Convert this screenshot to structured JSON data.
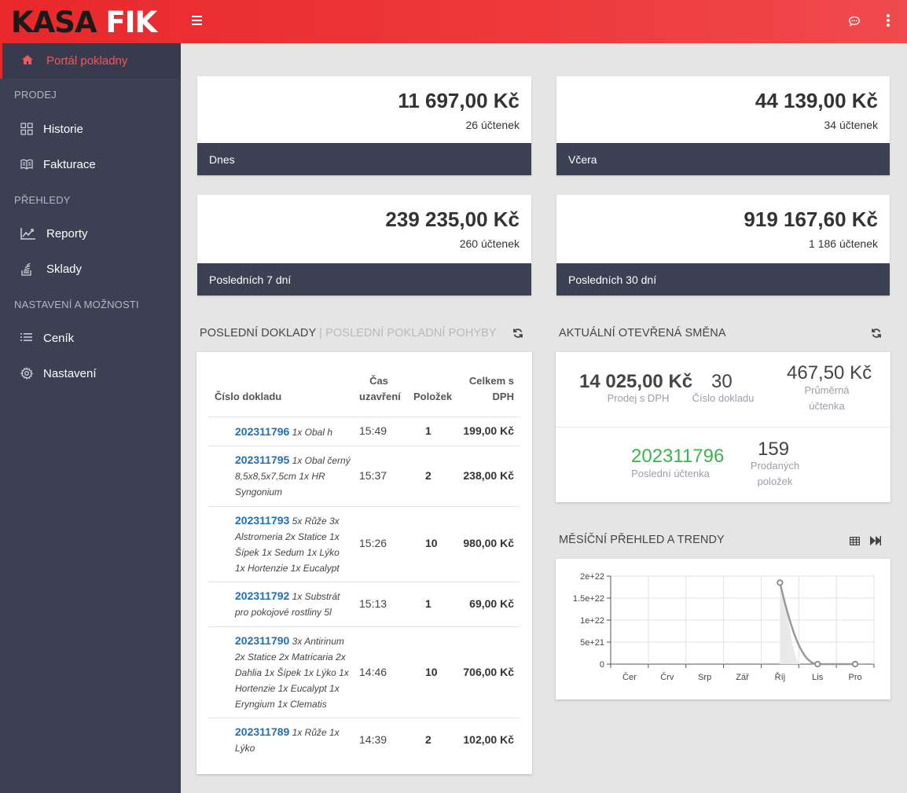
{
  "header": {
    "logo_part1": "KASA",
    "logo_part2": "FIK"
  },
  "sidebar": {
    "active": {
      "label": "Portál pokladny",
      "icon": "home-icon"
    },
    "sections": [
      {
        "title": "PRODEJ",
        "items": [
          {
            "label": "Historie",
            "icon": "grid-icon"
          },
          {
            "label": "Fakturace",
            "icon": "book-icon"
          }
        ]
      },
      {
        "title": "PŘEHLEDY",
        "items": [
          {
            "label": "Reporty",
            "icon": "line-chart-icon"
          },
          {
            "label": "Sklady",
            "icon": "stack-icon"
          }
        ]
      },
      {
        "title": "NASTAVENÍ A MOŽNOSTI",
        "items": [
          {
            "label": "Ceník",
            "icon": "list-icon"
          },
          {
            "label": "Nastavení",
            "icon": "gear-icon"
          }
        ]
      }
    ]
  },
  "stats": [
    {
      "amount": "11 697,00 Kč",
      "count": "26 účtenek",
      "label": "Dnes"
    },
    {
      "amount": "44 139,00 Kč",
      "count": "34 účtenek",
      "label": "Včera"
    },
    {
      "amount": "239 235,00 Kč",
      "count": "260 účtenek",
      "label": "Posledních 7 dní"
    },
    {
      "amount": "919 167,60 Kč",
      "count": "1 186 účtenek",
      "label": "Posledních 30 dní"
    }
  ],
  "docs": {
    "title_active": "POSLEDNÍ DOKLADY",
    "separator": "|",
    "title_inactive": "POSLEDNÍ POKLADNÍ POHYBY",
    "columns": {
      "number": "Číslo dokladu",
      "time_l1": "Čas",
      "time_l2": "uzavření",
      "items": "Položek",
      "total_l1": "Celkem s",
      "total_l2": "DPH"
    },
    "rows": [
      {
        "number": "202311796",
        "desc": "1x Obal h",
        "time": "15:49",
        "items": "1",
        "total": "199,00 Kč"
      },
      {
        "number": "202311795",
        "desc": "1x Obal černý 8,5x8,5x7,5cm 1x HR Syngonium",
        "time": "15:37",
        "items": "2",
        "total": "238,00 Kč"
      },
      {
        "number": "202311793",
        "desc": "5x Růže 3x Alstromeria 2x Statice 1x Šípek 1x Sedum 1x Lýko 1x Hortenzie 1x Eucalypt",
        "time": "15:26",
        "items": "10",
        "total": "980,00 Kč"
      },
      {
        "number": "202311792",
        "desc": "1x Substrát pro pokojové rostliny 5l",
        "time": "15:13",
        "items": "1",
        "total": "69,00 Kč"
      },
      {
        "number": "202311790",
        "desc": "3x Antirinum 2x Statice 2x Matricaria 2x Dahlia 1x Šípek 1x Lýko 1x Hortenzie 1x Eucalypt 1x Eryngium 1x Clematis",
        "time": "14:46",
        "items": "10",
        "total": "706,00 Kč"
      },
      {
        "number": "202311789",
        "desc": "1x Růže 1x Lýko",
        "time": "14:39",
        "items": "2",
        "total": "102,00 Kč"
      }
    ]
  },
  "shift": {
    "title": "AKTUÁLNÍ OTEVŘENÁ SMĚNA",
    "sales_value": "14 025,00 Kč",
    "sales_label": "Prodej s DPH",
    "doc_count_value": "30",
    "doc_count_label": "Číslo dokladu",
    "avg_value": "467,50 Kč",
    "avg_label_l1": "Průměrná",
    "avg_label_l2": "účtenka",
    "last_receipt_value": "202311796",
    "last_receipt_label": "Poslední účtenka",
    "sold_items_value": "159",
    "sold_items_label_l1": "Prodaných",
    "sold_items_label_l2": "položek",
    "success_color": "#3cb34a"
  },
  "monthly": {
    "title": "MĚSÍČNÍ PŘEHLED A TRENDY"
  },
  "chart_data": {
    "type": "line",
    "categories": [
      "Čer",
      "Črv",
      "Srp",
      "Zář",
      "Říj",
      "Lis",
      "Pro"
    ],
    "series": [
      {
        "values": [
          null,
          null,
          null,
          null,
          1.85e+22,
          0,
          0
        ]
      }
    ],
    "ytick_labels": [
      "0",
      "5e+21",
      "1e+22",
      "1.5e+22",
      "2e+22"
    ],
    "yticks": [
      0,
      5e+21,
      1e+22,
      1.5e+22,
      2e+22
    ],
    "ylim": [
      0,
      2e+22
    ],
    "grid": true
  }
}
